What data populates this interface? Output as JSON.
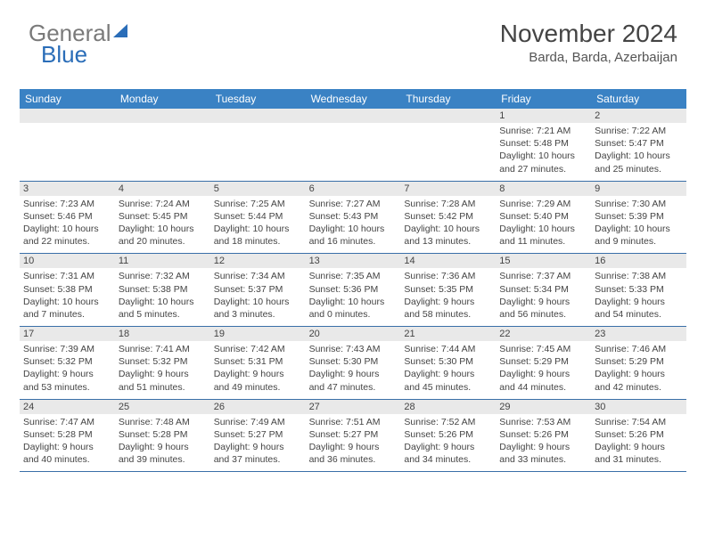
{
  "brand": {
    "part1": "General",
    "part2": "Blue"
  },
  "title": "November 2024",
  "location": "Barda, Barda, Azerbaijan",
  "colors": {
    "header_bg": "#3a82c4",
    "header_text": "#ffffff",
    "daynum_bg": "#e9e9e9",
    "week_border": "#3a6fa8",
    "text": "#444444",
    "logo_gray": "#7a7a7a",
    "logo_blue": "#2a6db8"
  },
  "day_names": [
    "Sunday",
    "Monday",
    "Tuesday",
    "Wednesday",
    "Thursday",
    "Friday",
    "Saturday"
  ],
  "weeks": [
    [
      {
        "n": "",
        "sr": "",
        "ss": "",
        "dl": ""
      },
      {
        "n": "",
        "sr": "",
        "ss": "",
        "dl": ""
      },
      {
        "n": "",
        "sr": "",
        "ss": "",
        "dl": ""
      },
      {
        "n": "",
        "sr": "",
        "ss": "",
        "dl": ""
      },
      {
        "n": "",
        "sr": "",
        "ss": "",
        "dl": ""
      },
      {
        "n": "1",
        "sr": "Sunrise: 7:21 AM",
        "ss": "Sunset: 5:48 PM",
        "dl": "Daylight: 10 hours and 27 minutes."
      },
      {
        "n": "2",
        "sr": "Sunrise: 7:22 AM",
        "ss": "Sunset: 5:47 PM",
        "dl": "Daylight: 10 hours and 25 minutes."
      }
    ],
    [
      {
        "n": "3",
        "sr": "Sunrise: 7:23 AM",
        "ss": "Sunset: 5:46 PM",
        "dl": "Daylight: 10 hours and 22 minutes."
      },
      {
        "n": "4",
        "sr": "Sunrise: 7:24 AM",
        "ss": "Sunset: 5:45 PM",
        "dl": "Daylight: 10 hours and 20 minutes."
      },
      {
        "n": "5",
        "sr": "Sunrise: 7:25 AM",
        "ss": "Sunset: 5:44 PM",
        "dl": "Daylight: 10 hours and 18 minutes."
      },
      {
        "n": "6",
        "sr": "Sunrise: 7:27 AM",
        "ss": "Sunset: 5:43 PM",
        "dl": "Daylight: 10 hours and 16 minutes."
      },
      {
        "n": "7",
        "sr": "Sunrise: 7:28 AM",
        "ss": "Sunset: 5:42 PM",
        "dl": "Daylight: 10 hours and 13 minutes."
      },
      {
        "n": "8",
        "sr": "Sunrise: 7:29 AM",
        "ss": "Sunset: 5:40 PM",
        "dl": "Daylight: 10 hours and 11 minutes."
      },
      {
        "n": "9",
        "sr": "Sunrise: 7:30 AM",
        "ss": "Sunset: 5:39 PM",
        "dl": "Daylight: 10 hours and 9 minutes."
      }
    ],
    [
      {
        "n": "10",
        "sr": "Sunrise: 7:31 AM",
        "ss": "Sunset: 5:38 PM",
        "dl": "Daylight: 10 hours and 7 minutes."
      },
      {
        "n": "11",
        "sr": "Sunrise: 7:32 AM",
        "ss": "Sunset: 5:38 PM",
        "dl": "Daylight: 10 hours and 5 minutes."
      },
      {
        "n": "12",
        "sr": "Sunrise: 7:34 AM",
        "ss": "Sunset: 5:37 PM",
        "dl": "Daylight: 10 hours and 3 minutes."
      },
      {
        "n": "13",
        "sr": "Sunrise: 7:35 AM",
        "ss": "Sunset: 5:36 PM",
        "dl": "Daylight: 10 hours and 0 minutes."
      },
      {
        "n": "14",
        "sr": "Sunrise: 7:36 AM",
        "ss": "Sunset: 5:35 PM",
        "dl": "Daylight: 9 hours and 58 minutes."
      },
      {
        "n": "15",
        "sr": "Sunrise: 7:37 AM",
        "ss": "Sunset: 5:34 PM",
        "dl": "Daylight: 9 hours and 56 minutes."
      },
      {
        "n": "16",
        "sr": "Sunrise: 7:38 AM",
        "ss": "Sunset: 5:33 PM",
        "dl": "Daylight: 9 hours and 54 minutes."
      }
    ],
    [
      {
        "n": "17",
        "sr": "Sunrise: 7:39 AM",
        "ss": "Sunset: 5:32 PM",
        "dl": "Daylight: 9 hours and 53 minutes."
      },
      {
        "n": "18",
        "sr": "Sunrise: 7:41 AM",
        "ss": "Sunset: 5:32 PM",
        "dl": "Daylight: 9 hours and 51 minutes."
      },
      {
        "n": "19",
        "sr": "Sunrise: 7:42 AM",
        "ss": "Sunset: 5:31 PM",
        "dl": "Daylight: 9 hours and 49 minutes."
      },
      {
        "n": "20",
        "sr": "Sunrise: 7:43 AM",
        "ss": "Sunset: 5:30 PM",
        "dl": "Daylight: 9 hours and 47 minutes."
      },
      {
        "n": "21",
        "sr": "Sunrise: 7:44 AM",
        "ss": "Sunset: 5:30 PM",
        "dl": "Daylight: 9 hours and 45 minutes."
      },
      {
        "n": "22",
        "sr": "Sunrise: 7:45 AM",
        "ss": "Sunset: 5:29 PM",
        "dl": "Daylight: 9 hours and 44 minutes."
      },
      {
        "n": "23",
        "sr": "Sunrise: 7:46 AM",
        "ss": "Sunset: 5:29 PM",
        "dl": "Daylight: 9 hours and 42 minutes."
      }
    ],
    [
      {
        "n": "24",
        "sr": "Sunrise: 7:47 AM",
        "ss": "Sunset: 5:28 PM",
        "dl": "Daylight: 9 hours and 40 minutes."
      },
      {
        "n": "25",
        "sr": "Sunrise: 7:48 AM",
        "ss": "Sunset: 5:28 PM",
        "dl": "Daylight: 9 hours and 39 minutes."
      },
      {
        "n": "26",
        "sr": "Sunrise: 7:49 AM",
        "ss": "Sunset: 5:27 PM",
        "dl": "Daylight: 9 hours and 37 minutes."
      },
      {
        "n": "27",
        "sr": "Sunrise: 7:51 AM",
        "ss": "Sunset: 5:27 PM",
        "dl": "Daylight: 9 hours and 36 minutes."
      },
      {
        "n": "28",
        "sr": "Sunrise: 7:52 AM",
        "ss": "Sunset: 5:26 PM",
        "dl": "Daylight: 9 hours and 34 minutes."
      },
      {
        "n": "29",
        "sr": "Sunrise: 7:53 AM",
        "ss": "Sunset: 5:26 PM",
        "dl": "Daylight: 9 hours and 33 minutes."
      },
      {
        "n": "30",
        "sr": "Sunrise: 7:54 AM",
        "ss": "Sunset: 5:26 PM",
        "dl": "Daylight: 9 hours and 31 minutes."
      }
    ]
  ]
}
